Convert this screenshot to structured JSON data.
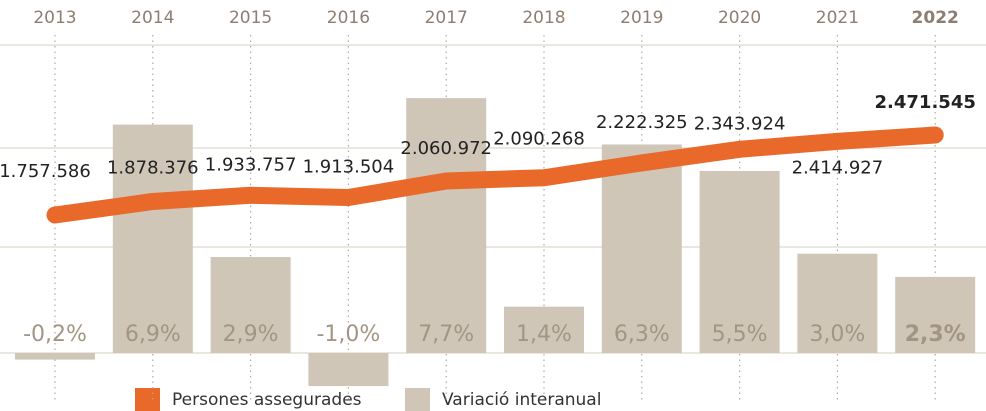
{
  "chart_data": {
    "type": "combo",
    "categories": [
      "2013",
      "2014",
      "2015",
      "2016",
      "2017",
      "2018",
      "2019",
      "2020",
      "2021",
      "2022"
    ],
    "series": [
      {
        "name": "Variació interanual",
        "type": "bar",
        "color": "#cfc6b8",
        "values": [
          -0.2,
          6.9,
          2.9,
          -1.0,
          7.7,
          1.4,
          6.3,
          5.5,
          3.0,
          2.3
        ],
        "value_labels": [
          "-0,2%",
          "6,9%",
          "2,9%",
          "-1,0%",
          "7,7%",
          "1,4%",
          "6,3%",
          "5,5%",
          "3,0%",
          "2,3%"
        ]
      },
      {
        "name": "Persones assegurades",
        "type": "line",
        "color": "#e8692a",
        "values": [
          1757586,
          1878376,
          1933757,
          1913504,
          2060972,
          2090268,
          2222325,
          2343924,
          2414927,
          2471545
        ],
        "value_labels": [
          "1.757.586",
          "1.878.376",
          "1.933.757",
          "1.913.504",
          "2.060.972",
          "2.090.268",
          "2.222.325",
          "2.343.924",
          "2.414.927",
          "2.471.545"
        ]
      }
    ]
  }
}
